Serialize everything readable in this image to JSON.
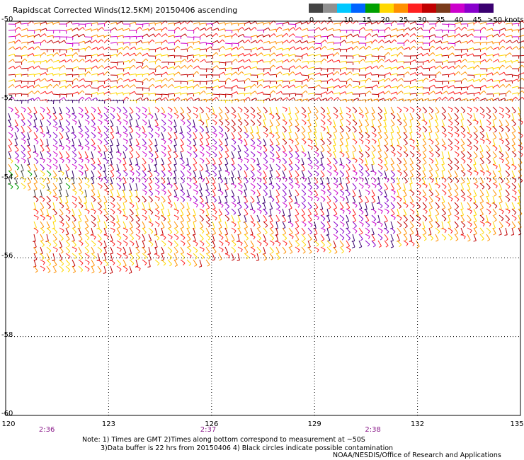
{
  "title": "Rapidscat Corrected Winds(12.5KM) 20150406 ascending",
  "legend": {
    "labels": [
      "0",
      "5",
      "10",
      "15",
      "20",
      "25",
      "30",
      "35",
      "40",
      "45"
    ],
    "units_label": ">50 knots",
    "colors": [
      "#444444",
      "#909090",
      "#00c8ff",
      "#0064ff",
      "#00a000",
      "#ffd800",
      "#ff9000",
      "#ff2020",
      "#c00000",
      "#7a3a1a",
      "#cc00cc",
      "#8800cc",
      "#3a0070"
    ]
  },
  "latitude_labels": [
    "-50",
    "-52",
    "-54",
    "-56",
    "-58",
    "-60"
  ],
  "longitude_labels": [
    "120",
    "123",
    "126",
    "129",
    "132",
    "135"
  ],
  "time_labels": [
    "2:36",
    "2:37",
    "2:38"
  ],
  "notes": {
    "line1": "Note: 1) Times are GMT 2)Times along bottom correspond to measurement at ~50S",
    "line2": "3)Data buffer is 22 hrs from 20150406 4) Black circles indicate possible contamination"
  },
  "credit": "NOAA/NESDIS/Office of Research and Applications",
  "map": {
    "lat_range": [
      -60,
      -50
    ],
    "lon_range": [
      120,
      135
    ],
    "grid": true
  }
}
